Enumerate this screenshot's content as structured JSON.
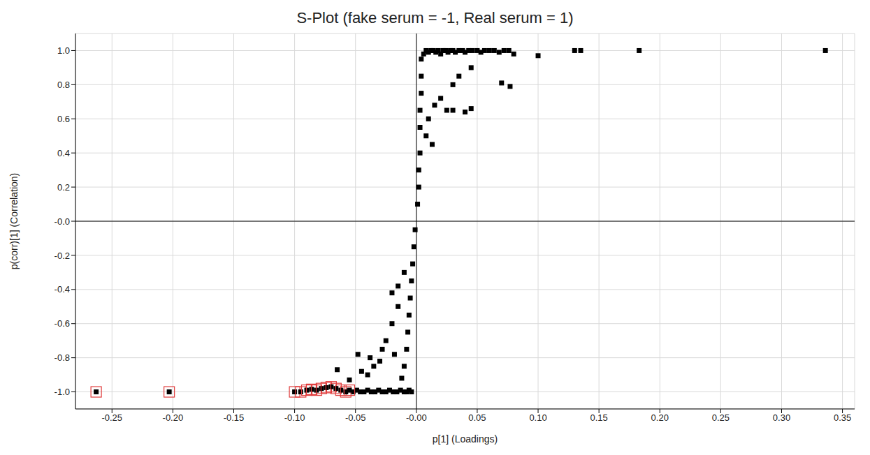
{
  "chart_data": {
    "type": "scatter",
    "title": "S-Plot (fake serum = -1, Real serum = 1)",
    "x_label": "p[1] (Loadings)",
    "y_label": "p(corr)[1] (Correlation)",
    "xlim": [
      -0.28,
      0.36
    ],
    "ylim": [
      -1.1,
      1.1
    ],
    "xticks": [
      -0.25,
      {
        "value": -0.2,
        "label": "-0.20"
      },
      -0.15,
      {
        "value": -0.1,
        "label": "-0.10"
      },
      -0.05,
      {
        "value": 0,
        "label": "-0.00"
      },
      0.05,
      {
        "value": 0.1,
        "label": "0.10"
      },
      0.15,
      {
        "value": 0.2,
        "label": "0.20"
      },
      0.25,
      {
        "value": 0.3,
        "label": "0.30"
      },
      0.35
    ],
    "yticks": [
      {
        "value": -1,
        "label": "-1.0"
      },
      -0.8,
      -0.6,
      -0.4,
      -0.2,
      {
        "value": 0,
        "label": "-0.0"
      },
      0.2,
      0.4,
      0.6,
      0.8,
      {
        "value": 1,
        "label": "1.0"
      }
    ],
    "grid": true,
    "series": [
      {
        "color": "#000000",
        "marker": "square",
        "x": [
          0.336,
          0.183,
          0.135,
          0.13,
          0.1,
          0.08,
          0.077,
          0.07,
          0.076,
          0.072,
          0.068,
          0.064,
          0.06,
          0.056,
          0.053,
          0.05,
          0.046,
          0.043,
          0.04,
          0.038,
          0.035,
          0.032,
          0.03,
          0.028,
          0.026,
          0.024,
          0.022,
          0.02,
          0.018,
          0.016,
          0.014,
          0.012,
          0.01,
          0.008,
          0.006,
          0.004,
          0.045,
          0.035,
          0.03,
          0.02,
          0.015,
          0.025,
          0.03,
          0.04,
          0.045,
          0.01,
          0.013,
          0.008,
          0.004,
          0.004,
          0.003,
          0.003,
          0.003,
          0.002,
          0.002,
          0.001,
          -0.001,
          -0.002,
          -0.003,
          -0.004,
          -0.005,
          -0.006,
          -0.007,
          -0.008,
          -0.01,
          -0.012,
          -0.015,
          -0.02,
          -0.025,
          -0.018,
          -0.03,
          -0.028,
          -0.035,
          -0.04,
          -0.045,
          -0.048,
          -0.038,
          -0.055,
          -0.065,
          -0.015,
          -0.01,
          -0.02,
          -0.004,
          -0.006,
          -0.008,
          -0.01,
          -0.013,
          -0.016,
          -0.019,
          -0.022,
          -0.025,
          -0.028,
          -0.031,
          -0.034,
          -0.037,
          -0.04,
          -0.043,
          -0.046,
          -0.049,
          -0.052
        ],
        "values": [
          1.0,
          1.0,
          1.0,
          1.0,
          0.97,
          0.98,
          0.79,
          0.81,
          1.0,
          1.0,
          0.99,
          1.0,
          1.0,
          1.0,
          0.99,
          1.0,
          1.0,
          1.0,
          0.99,
          1.0,
          1.0,
          0.99,
          1.0,
          1.0,
          0.99,
          1.0,
          1.0,
          0.98,
          1.0,
          0.99,
          1.0,
          1.0,
          0.99,
          1.0,
          0.98,
          0.95,
          0.9,
          0.85,
          0.8,
          0.72,
          0.68,
          0.65,
          0.65,
          0.64,
          0.66,
          0.6,
          0.45,
          0.5,
          0.85,
          0.75,
          0.65,
          0.55,
          0.4,
          0.3,
          0.2,
          0.1,
          -0.05,
          -0.15,
          -0.25,
          -0.35,
          -0.45,
          -0.55,
          -0.65,
          -0.75,
          -0.85,
          -0.92,
          -0.5,
          -0.6,
          -0.7,
          -0.78,
          -0.82,
          -0.75,
          -0.85,
          -0.9,
          -0.88,
          -0.78,
          -0.8,
          -0.93,
          -0.87,
          -0.38,
          -0.3,
          -0.42,
          -1.0,
          -0.99,
          -1.0,
          -1.0,
          -0.99,
          -1.0,
          -1.0,
          -0.99,
          -1.0,
          -1.0,
          -0.99,
          -1.0,
          -1.0,
          -0.99,
          -1.0,
          -1.0,
          -0.99,
          -1.0
        ]
      },
      {
        "color": "#e03c3c",
        "marker": "boxed",
        "x": [
          -0.263,
          -0.203,
          -0.1,
          -0.095,
          -0.09,
          -0.086,
          -0.082,
          -0.078,
          -0.074,
          -0.07,
          -0.066,
          -0.062,
          -0.058,
          -0.055
        ],
        "values": [
          -1.0,
          -1.0,
          -1.0,
          -1.0,
          -0.99,
          -0.985,
          -0.99,
          -0.98,
          -0.975,
          -0.97,
          -0.98,
          -0.99,
          -1.0,
          -0.99
        ]
      }
    ]
  }
}
